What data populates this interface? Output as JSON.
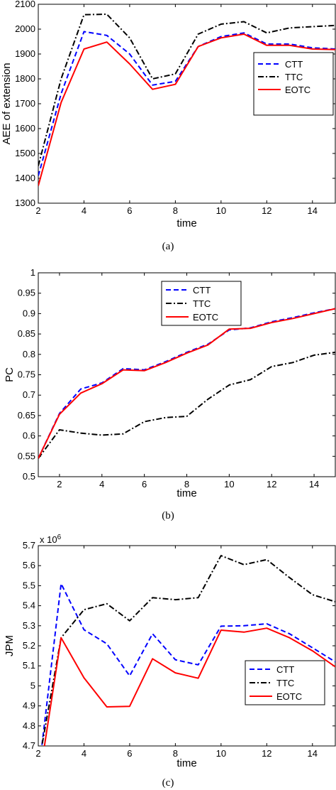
{
  "chart_data": [
    {
      "type": "line",
      "xlabel": "time",
      "ylabel": "AEE of extension",
      "caption": "(a)",
      "xlim": [
        2,
        15
      ],
      "ylim": [
        1300,
        2100
      ],
      "xticks": [
        2,
        4,
        6,
        8,
        10,
        12,
        14
      ],
      "yticks": [
        1300,
        1400,
        1500,
        1600,
        1700,
        1800,
        1900,
        2000,
        2100
      ],
      "ytick_labels": [
        "1300",
        "1400",
        "1500",
        "1600",
        "1700",
        "1800",
        "1900",
        "2000",
        "2100"
      ],
      "legend_position": "right",
      "x": [
        2,
        3,
        4,
        5,
        6,
        7,
        8,
        9,
        10,
        11,
        12,
        13,
        14,
        15
      ],
      "series": [
        {
          "name": "CTT",
          "color": "#0000ff",
          "dash": "dashed",
          "values": [
            1410,
            1740,
            1990,
            1975,
            1900,
            1775,
            1790,
            1930,
            1970,
            1985,
            1940,
            1940,
            1925,
            1920
          ]
        },
        {
          "name": "TTC",
          "color": "#000000",
          "dash": "dashdot",
          "values": [
            1450,
            1800,
            2058,
            2060,
            1965,
            1800,
            1820,
            1980,
            2020,
            2030,
            1985,
            2005,
            2010,
            2015
          ]
        },
        {
          "name": "EOTC",
          "color": "#ff0000",
          "dash": "solid",
          "values": [
            1370,
            1705,
            1920,
            1948,
            1860,
            1758,
            1778,
            1930,
            1965,
            1980,
            1935,
            1935,
            1920,
            1918
          ]
        }
      ]
    },
    {
      "type": "line",
      "xlabel": "time",
      "ylabel": "PC",
      "caption": "(b)",
      "xlim": [
        1,
        15
      ],
      "ylim": [
        0.5,
        1
      ],
      "xticks": [
        2,
        4,
        6,
        8,
        10,
        12,
        14
      ],
      "yticks": [
        0.5,
        0.55,
        0.6,
        0.65,
        0.7,
        0.75,
        0.8,
        0.85,
        0.9,
        0.95,
        1
      ],
      "ytick_labels": [
        "0.5",
        "0.55",
        "0.6",
        "0.65",
        "0.7",
        "0.75",
        "0.8",
        "0.85",
        "0.9",
        "0.95",
        "1"
      ],
      "legend_position": "top-center",
      "x": [
        1,
        2,
        3,
        4,
        5,
        6,
        7,
        8,
        9,
        10,
        11,
        12,
        13,
        14,
        15
      ],
      "series": [
        {
          "name": "CTT",
          "color": "#0000ff",
          "dash": "dashed",
          "values": [
            0.545,
            0.655,
            0.715,
            0.73,
            0.765,
            0.762,
            0.782,
            0.805,
            0.825,
            0.86,
            0.865,
            0.88,
            0.89,
            0.902,
            0.912
          ]
        },
        {
          "name": "TTC",
          "color": "#000000",
          "dash": "dashdot",
          "values": [
            0.545,
            0.615,
            0.607,
            0.602,
            0.605,
            0.635,
            0.645,
            0.648,
            0.69,
            0.725,
            0.738,
            0.77,
            0.78,
            0.798,
            0.805
          ]
        },
        {
          "name": "EOTC",
          "color": "#ff0000",
          "dash": "solid",
          "values": [
            0.545,
            0.653,
            0.705,
            0.728,
            0.762,
            0.76,
            0.78,
            0.803,
            0.823,
            0.862,
            0.864,
            0.878,
            0.888,
            0.9,
            0.912
          ]
        }
      ]
    },
    {
      "type": "line",
      "xlabel": "time",
      "ylabel": "JPM",
      "caption": "(c)",
      "multiplier": "x 10",
      "multiplier_exponent": "6",
      "xlim": [
        2,
        15
      ],
      "ylim": [
        4.7,
        5.7
      ],
      "xticks": [
        2,
        4,
        6,
        8,
        10,
        12,
        14
      ],
      "yticks": [
        4.7,
        4.8,
        4.9,
        5,
        5.1,
        5.2,
        5.3,
        5.4,
        5.5,
        5.6,
        5.7
      ],
      "ytick_labels": [
        "4.7",
        "4.8",
        "4.9",
        "5",
        "5.1",
        "5.2",
        "5.3",
        "5.4",
        "5.5",
        "5.6",
        "5.7"
      ],
      "legend_position": "bottom-right",
      "x": [
        2,
        3,
        4,
        5,
        6,
        7,
        8,
        9,
        10,
        11,
        12,
        13,
        14,
        15
      ],
      "series": [
        {
          "name": "CTT",
          "color": "#0000ff",
          "dash": "dashed",
          "values": [
            4.55,
            5.51,
            5.28,
            5.21,
            5.05,
            5.26,
            5.13,
            5.105,
            5.298,
            5.3,
            5.31,
            5.26,
            5.19,
            5.12
          ]
        },
        {
          "name": "TTC",
          "color": "#000000",
          "dash": "dashdot",
          "values": [
            4.6,
            5.24,
            5.38,
            5.41,
            5.325,
            5.44,
            5.43,
            5.44,
            5.65,
            5.605,
            5.63,
            5.54,
            5.455,
            5.42
          ]
        },
        {
          "name": "EOTC",
          "color": "#ff0000",
          "dash": "solid",
          "values": [
            4.5,
            5.24,
            5.04,
            4.895,
            4.898,
            5.135,
            5.065,
            5.038,
            5.278,
            5.268,
            5.288,
            5.24,
            5.175,
            5.095
          ]
        }
      ]
    }
  ]
}
